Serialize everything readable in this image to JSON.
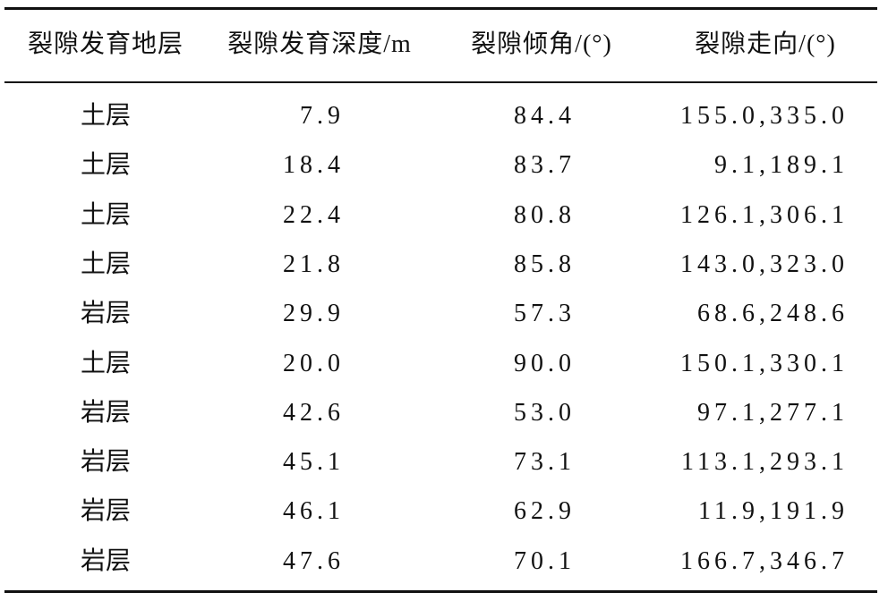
{
  "table": {
    "header": [
      "裂隙发育地层",
      "裂隙发育深度/m",
      "裂隙倾角/(°)",
      "裂隙走向/(°)"
    ],
    "rows": [
      [
        "土层",
        "7.9",
        "84.4",
        "155.0,335.0"
      ],
      [
        "土层",
        "18.4",
        "83.7",
        "9.1,189.1"
      ],
      [
        "土层",
        "22.4",
        "80.8",
        "126.1,306.1"
      ],
      [
        "土层",
        "21.8",
        "85.8",
        "143.0,323.0"
      ],
      [
        "岩层",
        "29.9",
        "57.3",
        "68.6,248.6"
      ],
      [
        "土层",
        "20.0",
        "90.0",
        "150.1,330.1"
      ],
      [
        "岩层",
        "42.6",
        "53.0",
        "97.1,277.1"
      ],
      [
        "岩层",
        "45.1",
        "73.1",
        "113.1,293.1"
      ],
      [
        "岩层",
        "46.1",
        "62.9",
        "11.9,191.9"
      ],
      [
        "岩层",
        "47.6",
        "70.1",
        "166.7,346.7"
      ]
    ]
  }
}
